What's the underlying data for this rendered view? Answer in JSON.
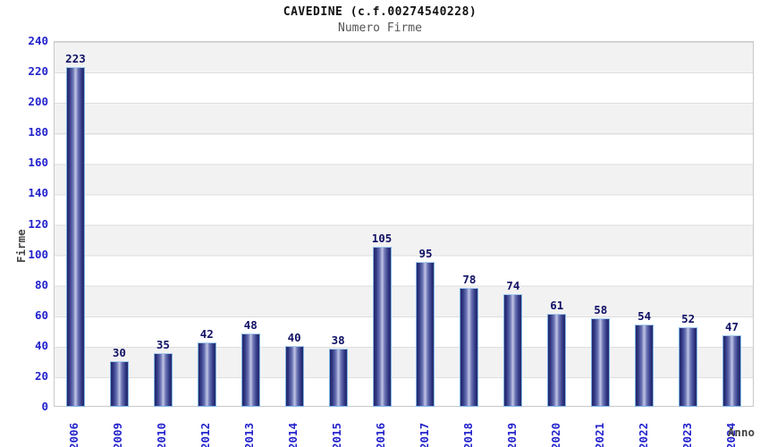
{
  "page": {
    "title": "CAVEDINE (c.f.00274540228)",
    "subtitle": "Numero Firme"
  },
  "chart_data": {
    "type": "bar",
    "title": "CAVEDINE (c.f.00274540228)",
    "subtitle": "Numero Firme",
    "xlabel": "Anno",
    "ylabel": "Firme",
    "categories": [
      "2006",
      "2009",
      "2010",
      "2012",
      "2013",
      "2014",
      "2015",
      "2016",
      "2017",
      "2018",
      "2019",
      "2020",
      "2021",
      "2022",
      "2023",
      "2024"
    ],
    "values": [
      223,
      30,
      35,
      42,
      48,
      40,
      38,
      105,
      95,
      78,
      74,
      61,
      58,
      54,
      52,
      47
    ],
    "ylim": [
      0,
      240
    ],
    "yticks": [
      0,
      20,
      40,
      60,
      80,
      100,
      120,
      140,
      160,
      180,
      200,
      220,
      240
    ],
    "grid": "alternating horizontal bands every 20 units with gridlines",
    "legend": "none",
    "bar_value_labels": "above each bar",
    "xtick_rotation": "90deg vertical reading bottom-up",
    "colors": {
      "bar_edge_dark": "#232968",
      "bar_center_light": "#c2c6e4",
      "bar_outline": "#7fb2e5",
      "tick_label_blue": "#2222cc",
      "value_label_navy": "#111166",
      "axis_title_gray": "#444444",
      "subtitle_gray": "#555555",
      "band_gray": "#f2f2f2",
      "band_white": "#ffffff",
      "plot_border": "#c9c9c9"
    }
  }
}
